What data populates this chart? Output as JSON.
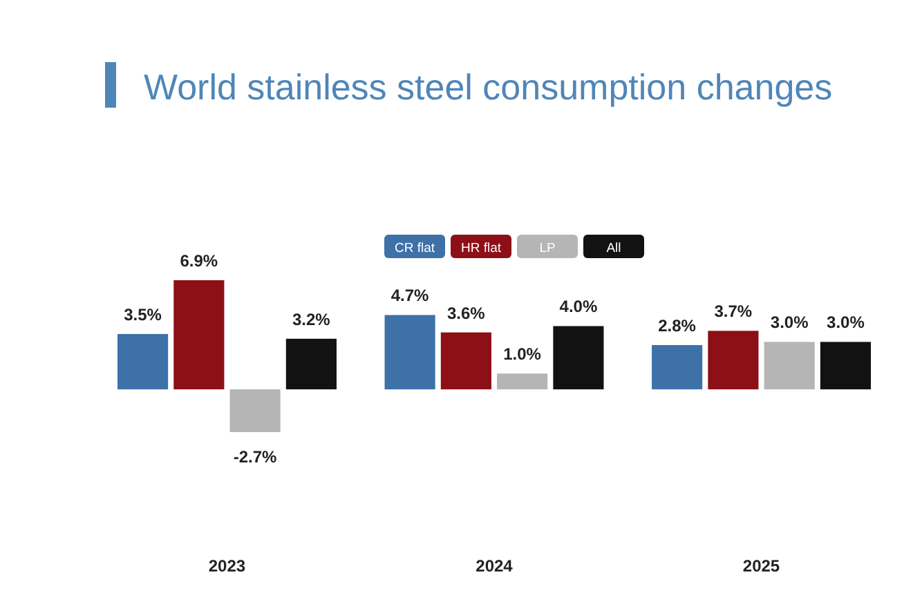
{
  "chart_data": {
    "type": "bar",
    "title": "World stainless steel consumption changes",
    "categories": [
      "2023",
      "2024",
      "2025"
    ],
    "legend": "top",
    "series": [
      {
        "name": "CR flat",
        "color": "#3d71a8",
        "values": [
          3.5,
          4.7,
          2.8
        ],
        "value_labels": [
          "3.5%",
          "4.7%",
          "2.8%"
        ]
      },
      {
        "name": "HR flat",
        "color": "#8c1016",
        "values": [
          6.9,
          3.6,
          3.7
        ],
        "value_labels": [
          "6.9%",
          "3.6%",
          "3.7%"
        ]
      },
      {
        "name": "LP",
        "color": "#b5b5b5",
        "values": [
          -2.7,
          1.0,
          3.0
        ],
        "value_labels": [
          "-2.7%",
          "1.0%",
          "3.0%"
        ]
      },
      {
        "name": "All",
        "color": "#121212",
        "values": [
          3.2,
          4.0,
          3.0
        ],
        "value_labels": [
          "3.2%",
          "4.0%",
          "3.0%"
        ]
      }
    ]
  }
}
